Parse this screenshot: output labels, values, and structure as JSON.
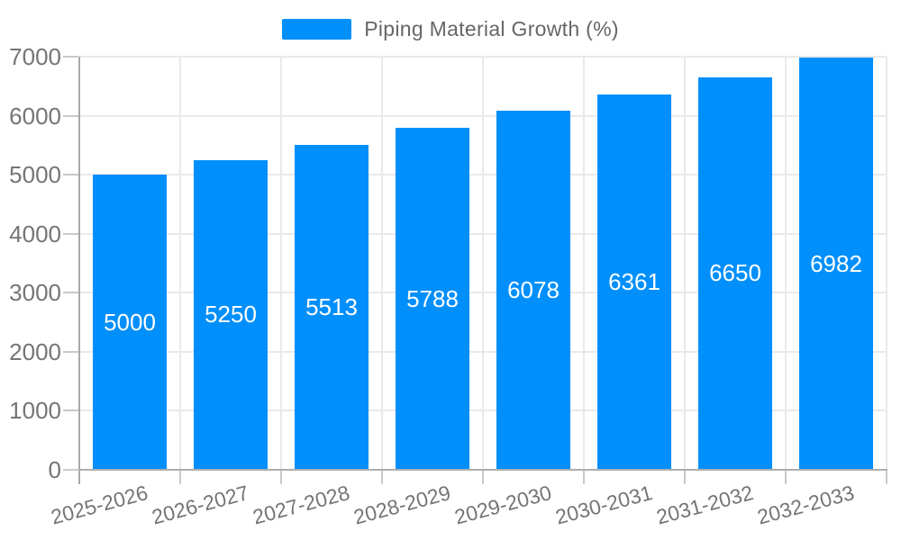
{
  "legend": {
    "label": "Piping Material Growth (%)"
  },
  "chart_data": {
    "type": "bar",
    "title": "Piping Material Growth (%)",
    "categories": [
      "2025-2026",
      "2026-2027",
      "2027-2028",
      "2028-2029",
      "2029-2030",
      "2030-2031",
      "2031-2032",
      "2032-2033"
    ],
    "values": [
      5000,
      5250,
      5513,
      5788,
      6078,
      6361,
      6650,
      6982
    ],
    "data_labels": [
      "5000",
      "5250",
      "5513",
      "5788",
      "6078",
      "6361",
      "6650",
      "6982"
    ],
    "xlabel": "",
    "ylabel": "",
    "ylim": [
      0,
      7000
    ],
    "y_ticks": [
      0,
      1000,
      2000,
      3000,
      4000,
      5000,
      6000,
      7000
    ],
    "grid": "horizontal and vertical, light gray",
    "legend_position": "top-center",
    "bar_color": "#008FFB",
    "data_label_color": "#ffffff",
    "axis_label_color": "#757575",
    "legend_text_color": "#666666",
    "gridline_color": "#e9e9e9"
  }
}
